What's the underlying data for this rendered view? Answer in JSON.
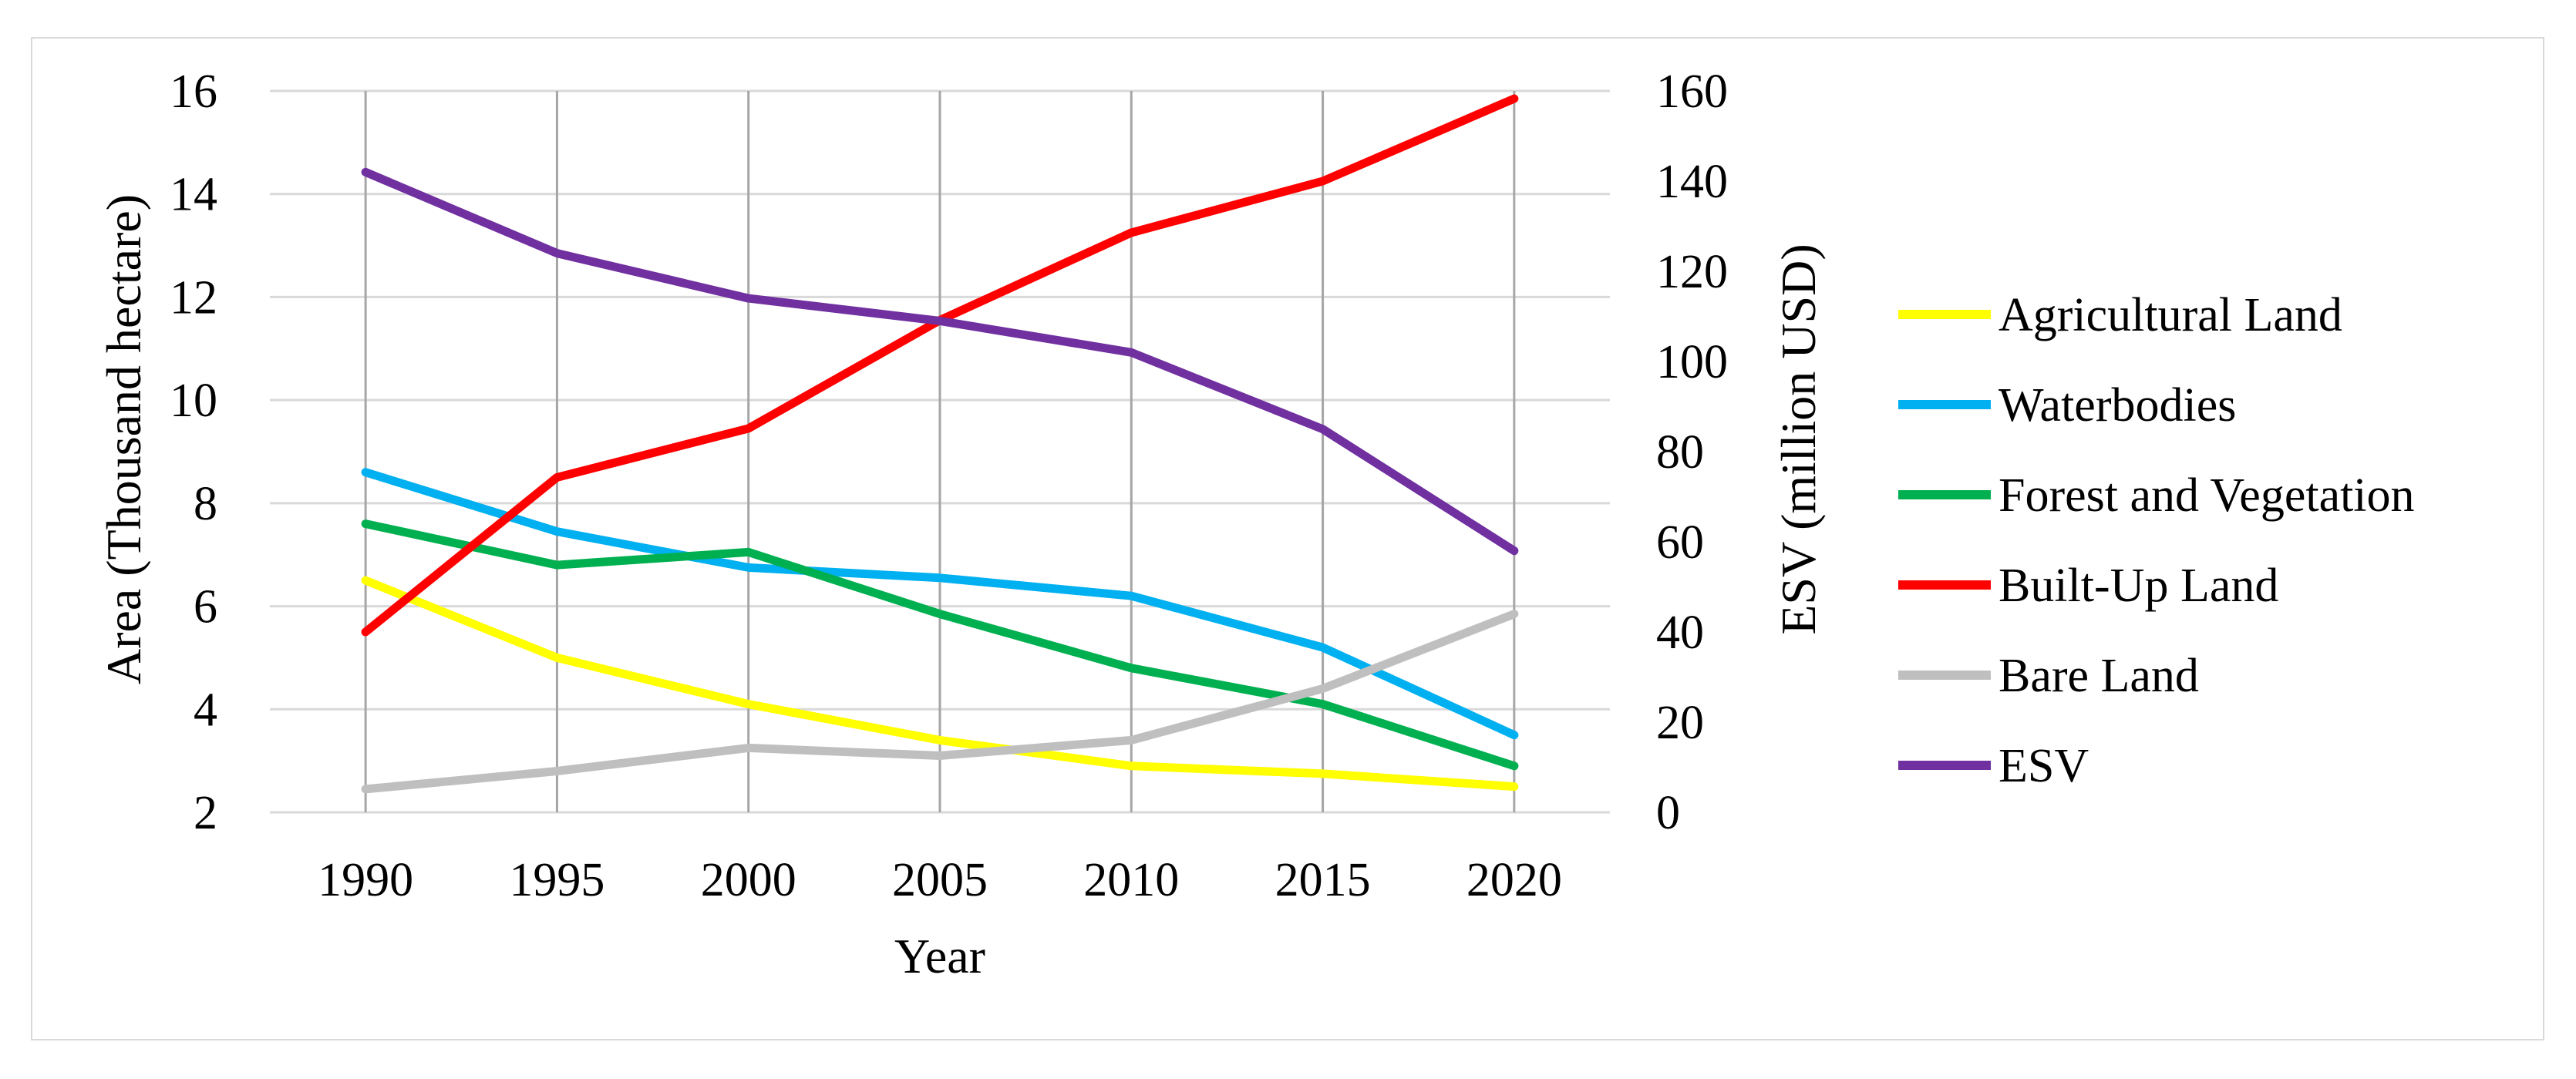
{
  "chart_data": {
    "type": "line",
    "title": "",
    "xlabel": "Year",
    "ylabel": "Area (Thousand hectare)",
    "y2label": "ESV (million USD)",
    "categories": [
      "1990",
      "1995",
      "2000",
      "2005",
      "2010",
      "2015",
      "2020"
    ],
    "ylim": [
      2,
      16
    ],
    "y_ticks": [
      "2",
      "4",
      "6",
      "8",
      "10",
      "12",
      "14",
      "16"
    ],
    "y2lim": [
      0,
      160
    ],
    "y2_ticks": [
      "0",
      "20",
      "40",
      "60",
      "80",
      "100",
      "120",
      "140",
      "160"
    ],
    "grid": true,
    "legend_position": "right",
    "series": [
      {
        "name": "Agricultural Land",
        "axis": "left",
        "color": "#ffff00",
        "values": [
          6.5,
          5.0,
          4.1,
          3.4,
          2.9,
          2.75,
          2.5
        ]
      },
      {
        "name": "Waterbodies",
        "axis": "left",
        "color": "#00b0f0",
        "values": [
          8.6,
          7.45,
          6.75,
          6.55,
          6.2,
          5.2,
          3.5
        ]
      },
      {
        "name": "Forest and Vegetation",
        "axis": "left",
        "color": "#00b050",
        "values": [
          7.6,
          6.8,
          7.05,
          5.85,
          4.8,
          4.1,
          2.9
        ]
      },
      {
        "name": "Built-Up Land",
        "axis": "left",
        "color": "#ff0000",
        "values": [
          5.5,
          8.5,
          9.45,
          11.55,
          13.25,
          14.25,
          15.85
        ]
      },
      {
        "name": "Bare Land",
        "axis": "left",
        "color": "#bfbfbf",
        "values": [
          2.45,
          2.8,
          3.25,
          3.1,
          3.4,
          4.4,
          5.85
        ]
      },
      {
        "name": "ESV",
        "axis": "right",
        "color": "#7030a0",
        "values": [
          142,
          124,
          114,
          109,
          102,
          85,
          58
        ]
      }
    ]
  }
}
